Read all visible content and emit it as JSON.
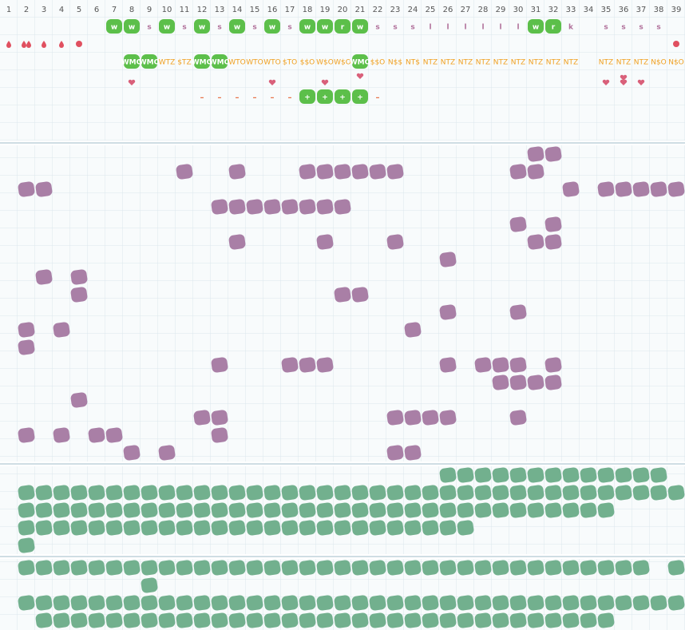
{
  "header": {
    "days": [
      1,
      2,
      3,
      4,
      5,
      6,
      7,
      8,
      9,
      10,
      11,
      12,
      13,
      14,
      15,
      16,
      17,
      18,
      19,
      20,
      21,
      22,
      23,
      24,
      25,
      26,
      27,
      28,
      29,
      30,
      31,
      32,
      33,
      34,
      35,
      36,
      37,
      38,
      39
    ]
  },
  "tracker": {
    "activity": [
      null,
      null,
      null,
      null,
      null,
      null,
      {
        "text": "w",
        "highlight": true
      },
      {
        "text": "w",
        "highlight": true
      },
      "s",
      {
        "text": "w",
        "highlight": true
      },
      "s",
      {
        "text": "w",
        "highlight": true
      },
      "s",
      {
        "text": "w",
        "highlight": true
      },
      "s",
      {
        "text": "w",
        "highlight": true
      },
      "s",
      {
        "text": "w",
        "highlight": true
      },
      {
        "text": "w",
        "highlight": true
      },
      {
        "text": "r",
        "highlight": true
      },
      {
        "text": "w",
        "highlight": true
      },
      "s",
      "s",
      "s",
      "l",
      "l",
      "l",
      "l",
      "l",
      "l",
      {
        "text": "w",
        "highlight": true
      },
      {
        "text": "r",
        "highlight": true
      },
      "k",
      null,
      "s",
      "s",
      "s",
      "s",
      null
    ],
    "codes": [
      null,
      null,
      null,
      null,
      null,
      null,
      null,
      {
        "text": "WMO",
        "highlight": true
      },
      {
        "text": "WMO",
        "highlight": true
      },
      "WTZ",
      "$TZ",
      {
        "text": "WMO",
        "highlight": true
      },
      {
        "text": "WMO",
        "highlight": true
      },
      "WTO",
      "WTO",
      "WTO",
      "$TO",
      "$$O",
      "W$O",
      "W$O",
      {
        "text": "WMO",
        "highlight": true
      },
      "$$O",
      "N$$",
      "NT$",
      "NTZ",
      "NTZ",
      "NTZ",
      "NTZ",
      "NTZ",
      "NTZ",
      "NTZ",
      "NTZ",
      "NTZ",
      null,
      "NTZ",
      "NTZ",
      "NTZ",
      "N$O",
      "N$O"
    ],
    "marks": [
      null,
      null,
      null,
      null,
      null,
      null,
      null,
      null,
      null,
      null,
      null,
      "–",
      "–",
      "–",
      "–",
      "–",
      "–",
      {
        "text": "+",
        "highlight": true
      },
      {
        "text": "+",
        "highlight": true
      },
      {
        "text": "+",
        "highlight": true
      },
      {
        "text": "+",
        "highlight": true
      },
      "–",
      null,
      null,
      null,
      null,
      null,
      null,
      null,
      null,
      null,
      null,
      null,
      null,
      null,
      null,
      null,
      null,
      null
    ]
  }
}
